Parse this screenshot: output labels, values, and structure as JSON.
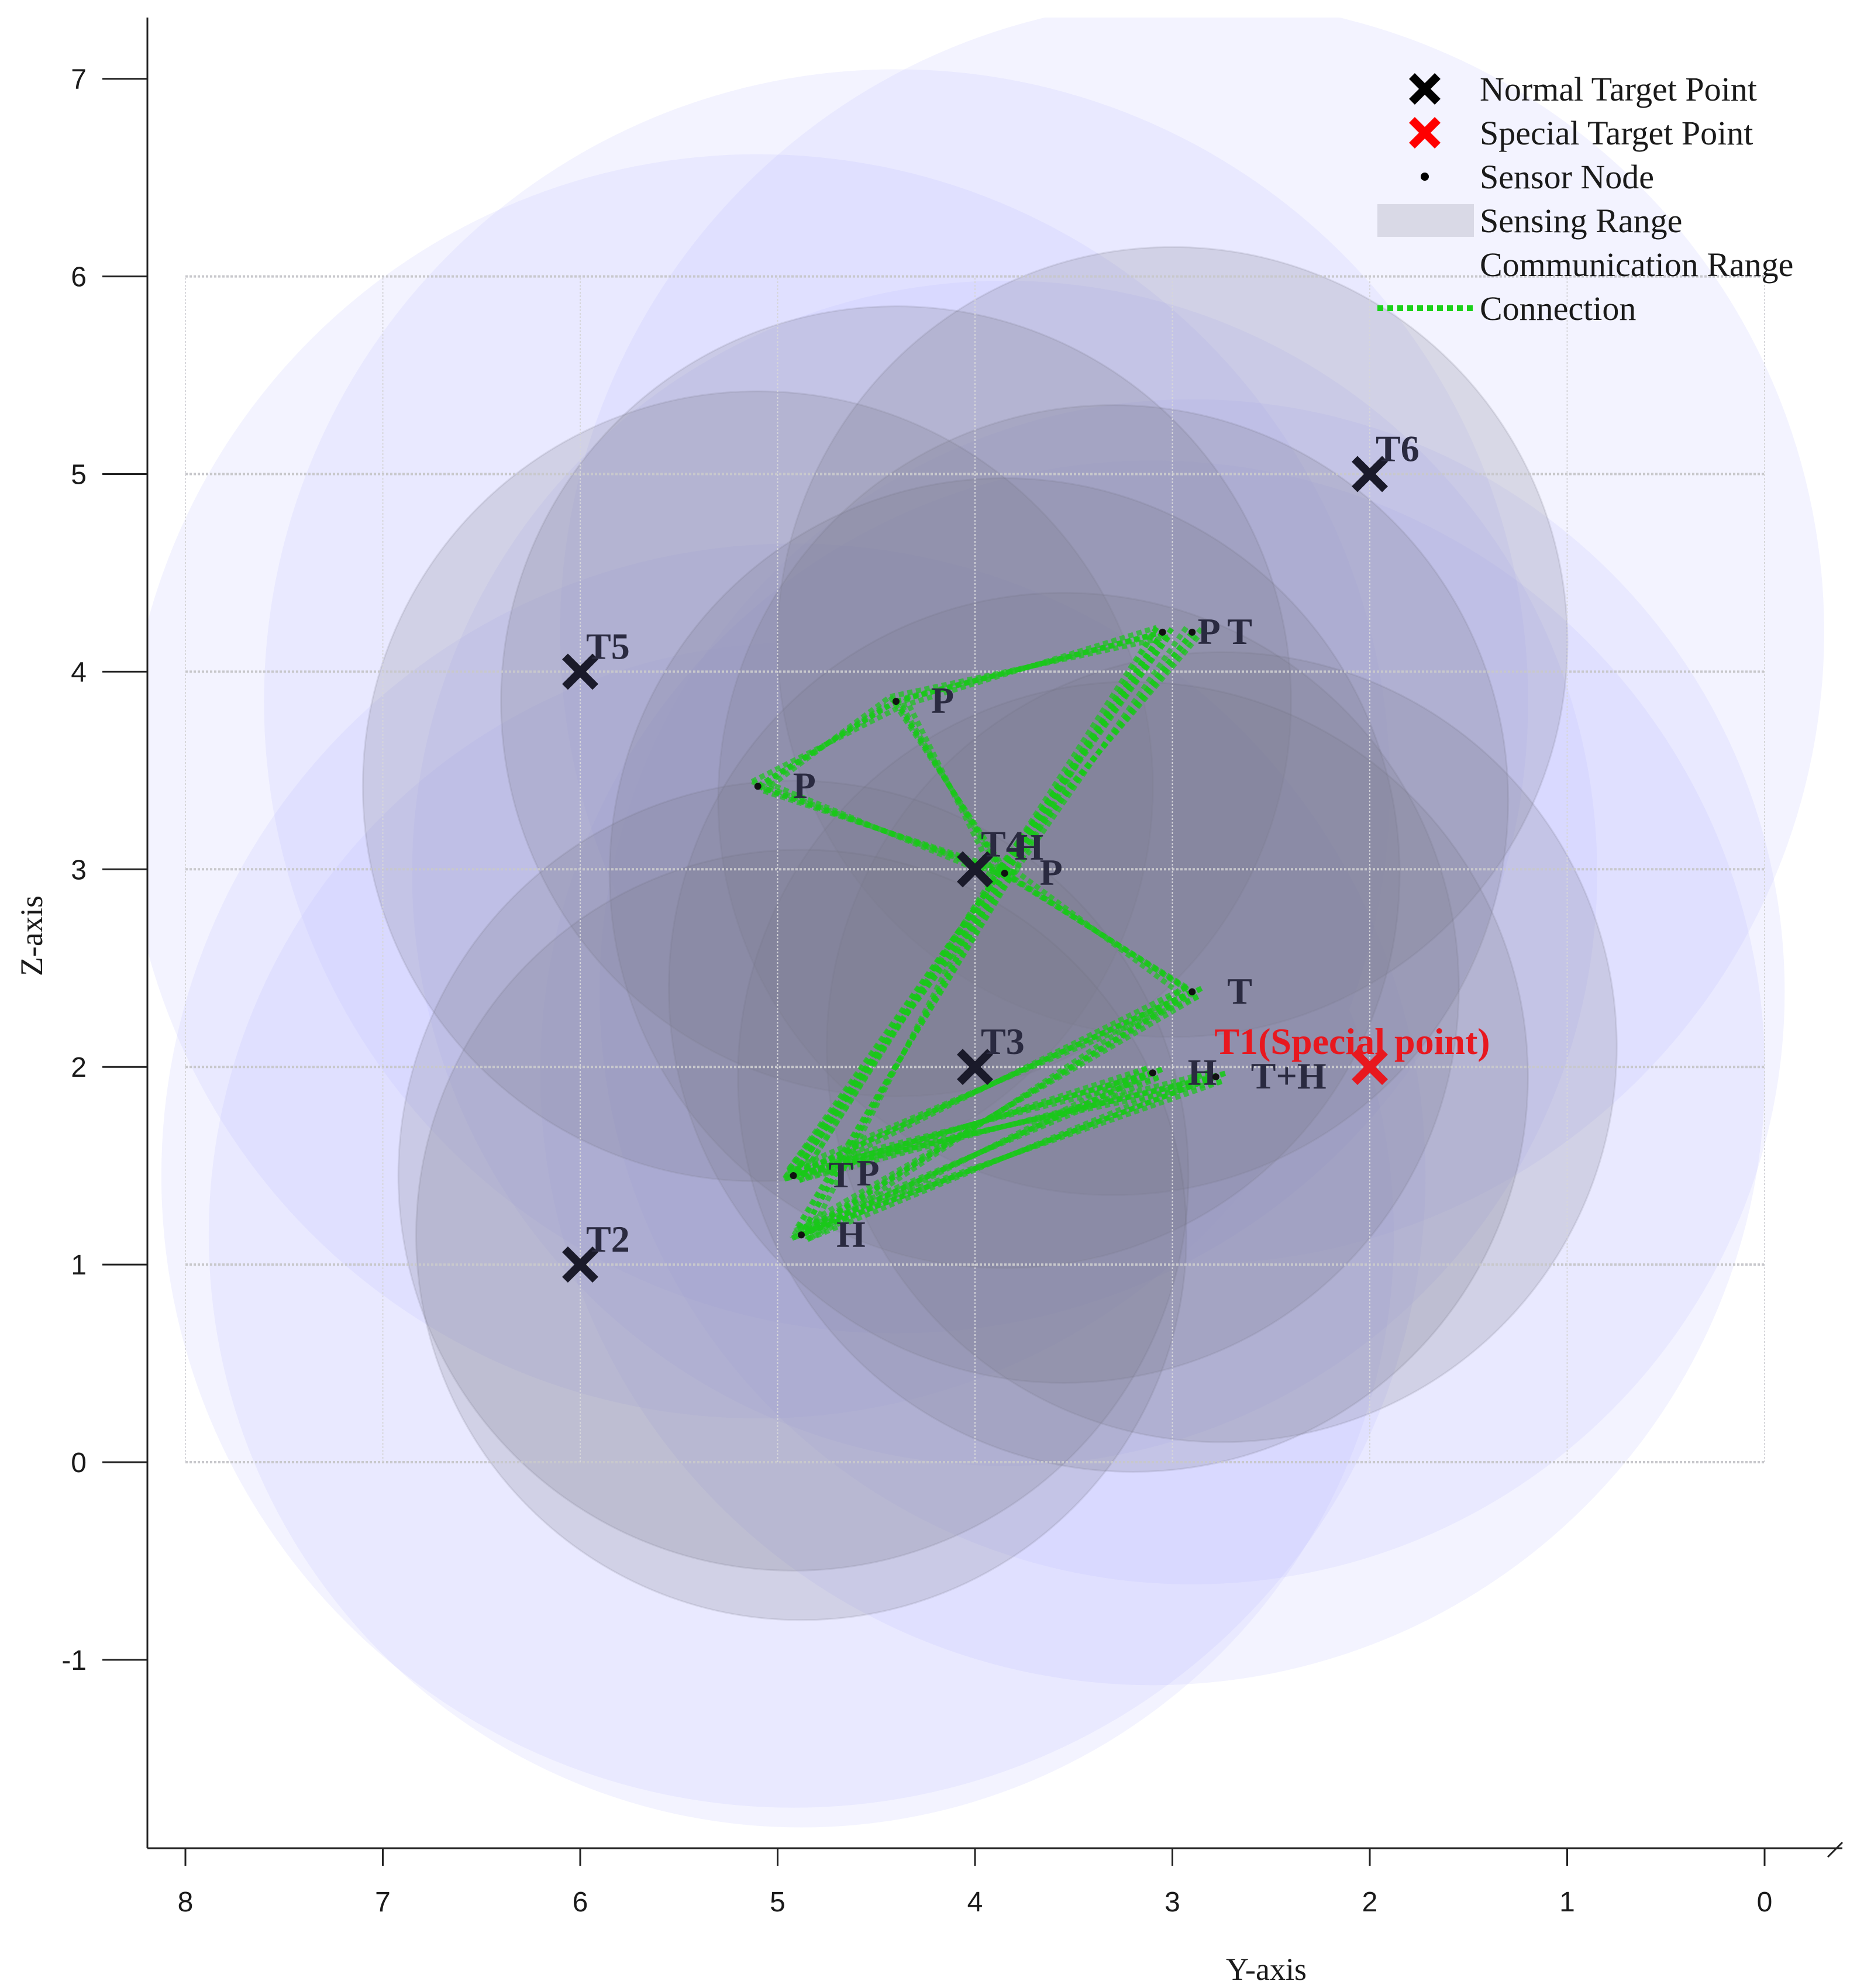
{
  "chart_data": {
    "type": "scatter",
    "title": "",
    "xlabel": "Y-axis",
    "ylabel": "Z-axis",
    "xlim": [
      8,
      0
    ],
    "ylim": [
      -1.9,
      7.3
    ],
    "x_ticks": [
      "8",
      "7",
      "6",
      "5",
      "4",
      "3",
      "2",
      "1",
      "0"
    ],
    "y_ticks": [
      "-1",
      "0",
      "1",
      "2",
      "3",
      "4",
      "5",
      "6",
      "7"
    ],
    "grid_box": {
      "y": [
        0,
        8
      ],
      "z": [
        0,
        6
      ]
    },
    "target_points": [
      {
        "name": "T2",
        "y": 6,
        "z": 1,
        "special": false
      },
      {
        "name": "T3",
        "y": 4,
        "z": 2,
        "special": false
      },
      {
        "name": "T4",
        "y": 4,
        "z": 3,
        "special": false
      },
      {
        "name": "T5",
        "y": 6,
        "z": 4,
        "special": false
      },
      {
        "name": "T6",
        "y": 2,
        "z": 5,
        "special": false
      },
      {
        "name": "T1(Special point)",
        "y": 2,
        "z": 2,
        "special": true
      }
    ],
    "sensor_nodes": [
      {
        "y": 5.1,
        "z": 3.42,
        "label": "P"
      },
      {
        "y": 4.4,
        "z": 3.85,
        "label": "P"
      },
      {
        "y": 3.05,
        "z": 4.2,
        "label": "P"
      },
      {
        "y": 2.9,
        "z": 4.2,
        "label": "T"
      },
      {
        "y": 3.85,
        "z": 2.98,
        "label": "P"
      },
      {
        "y": 2.9,
        "z": 2.38,
        "label": "T"
      },
      {
        "y": 3.1,
        "z": 1.97,
        "label": "H"
      },
      {
        "y": 2.78,
        "z": 1.95,
        "label": "T+H"
      },
      {
        "y": 4.92,
        "z": 1.45,
        "label": "T"
      },
      {
        "y": 4.88,
        "z": 1.15,
        "label": "H"
      }
    ],
    "extra_labels": [
      {
        "text": "P",
        "y": 4.6,
        "z": 1.4
      },
      {
        "text": "H",
        "y": 3.8,
        "z": 3.05
      }
    ],
    "connections": [
      [
        0,
        1
      ],
      [
        0,
        4
      ],
      [
        1,
        2
      ],
      [
        1,
        4
      ],
      [
        2,
        4
      ],
      [
        2,
        8
      ],
      [
        3,
        4
      ],
      [
        4,
        5
      ],
      [
        4,
        8
      ],
      [
        4,
        9
      ],
      [
        5,
        8
      ],
      [
        5,
        9
      ],
      [
        6,
        8
      ],
      [
        7,
        8
      ],
      [
        7,
        9
      ],
      [
        6,
        9
      ]
    ],
    "sensing_circles": [
      {
        "y": 3.0,
        "z": 4.15,
        "r": 2.0
      },
      {
        "y": 3.3,
        "z": 3.35,
        "r": 2.0
      },
      {
        "y": 5.1,
        "z": 3.42,
        "r": 2.0
      },
      {
        "y": 4.4,
        "z": 3.85,
        "r": 2.0
      },
      {
        "y": 3.85,
        "z": 2.98,
        "r": 2.0
      },
      {
        "y": 3.55,
        "z": 2.4,
        "r": 2.0
      },
      {
        "y": 2.75,
        "z": 2.1,
        "r": 2.0
      },
      {
        "y": 3.2,
        "z": 1.95,
        "r": 2.0
      },
      {
        "y": 4.92,
        "z": 1.45,
        "r": 2.0
      },
      {
        "y": 4.88,
        "z": 1.15,
        "r": 1.95
      }
    ],
    "communication_circles": [
      {
        "y": 2.9,
        "z": 4.2,
        "r": 3.2
      },
      {
        "y": 4.4,
        "z": 3.85,
        "r": 3.2
      },
      {
        "y": 5.1,
        "z": 3.42,
        "r": 3.2
      },
      {
        "y": 3.85,
        "z": 2.98,
        "r": 3.0
      },
      {
        "y": 2.9,
        "z": 2.38,
        "r": 3.0
      },
      {
        "y": 3.1,
        "z": 1.97,
        "r": 3.1
      },
      {
        "y": 4.92,
        "z": 1.45,
        "r": 3.2
      },
      {
        "y": 4.88,
        "z": 1.15,
        "r": 3.0
      }
    ],
    "legend": {
      "position": "top-right",
      "entries": [
        {
          "label": "Normal Target Point",
          "marker": "x",
          "color": "#000000"
        },
        {
          "label": "Special Target Point",
          "marker": "x",
          "color": "#ff0000"
        },
        {
          "label": "Sensor Node",
          "marker": "dot",
          "color": "#000000"
        },
        {
          "label": "Sensing Range",
          "marker": "patch",
          "color": "#c8c8d6"
        },
        {
          "label": "Communication Range",
          "marker": "none",
          "color": "#ffffff"
        },
        {
          "label": "Connection",
          "marker": "dotted-line",
          "color": "#19d119"
        }
      ]
    },
    "colors": {
      "sensing_fill": "#7a7a8c",
      "comm_fill": "#b4b4ff",
      "connection": "#19c819",
      "special": "#e8181f",
      "normal": "#1a1a2a"
    }
  }
}
